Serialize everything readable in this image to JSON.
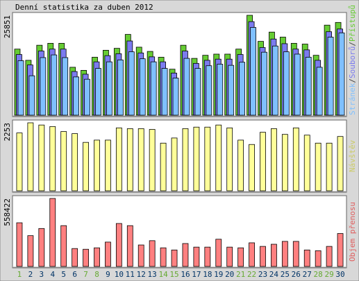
{
  "chart_data": [
    {
      "type": "bar-group",
      "title": "Denní statistika za duben 2012",
      "ylim": [
        0,
        25851
      ],
      "yticks": [
        25851
      ],
      "legend_separator": "/",
      "series": [
        {
          "name": "Přístupů",
          "color": "#66cc33",
          "values": [
            17100,
            14200,
            18100,
            18600,
            18600,
            12400,
            11600,
            15000,
            16800,
            17300,
            20900,
            17600,
            16500,
            15000,
            11900,
            18100,
            14700,
            15500,
            15800,
            15800,
            17100,
            25851,
            19100,
            21500,
            20200,
            18600,
            18400,
            15500,
            23300,
            24000
          ]
        },
        {
          "name": "Souborů",
          "color": "#7b7bef",
          "values": [
            15700,
            13000,
            16600,
            17100,
            17100,
            11300,
            10600,
            13800,
            15400,
            15900,
            19200,
            16100,
            15100,
            13800,
            10900,
            16600,
            13400,
            14200,
            14500,
            14500,
            15700,
            24200,
            17500,
            19700,
            18500,
            17100,
            16900,
            14200,
            21600,
            22300
          ]
        },
        {
          "name": "Stránek",
          "color": "#7fc0ff",
          "values": [
            14100,
            10200,
            14900,
            15600,
            14900,
            9900,
            9300,
            12100,
            13800,
            14300,
            16400,
            14600,
            13800,
            12100,
            9600,
            14700,
            12100,
            12800,
            13200,
            12900,
            13700,
            22700,
            16300,
            17900,
            16400,
            15800,
            15000,
            12400,
            20200,
            21300
          ]
        }
      ]
    },
    {
      "type": "bar",
      "name": "Návštěv",
      "color": "#ffff99",
      "label_color": "#cccc66",
      "ylim": [
        0,
        2253
      ],
      "yticks": [
        2253
      ],
      "values": [
        1917,
        2253,
        2180,
        2130,
        1965,
        1895,
        1605,
        1680,
        1680,
        2085,
        2060,
        2060,
        2035,
        1580,
        1750,
        2060,
        2110,
        2110,
        2180,
        2085,
        1680,
        1535,
        1940,
        2060,
        1870,
        2085,
        1845,
        1580,
        1580,
        1800
      ]
    },
    {
      "type": "bar",
      "name": "Objem přenosu",
      "color": "#ff8080",
      "label_color": "#e06060",
      "ylim": [
        0,
        558422
      ],
      "yticks": [
        558422
      ],
      "categories": [
        1,
        2,
        3,
        4,
        5,
        6,
        7,
        8,
        9,
        10,
        11,
        12,
        13,
        14,
        15,
        16,
        17,
        18,
        19,
        20,
        21,
        22,
        23,
        24,
        25,
        26,
        27,
        28,
        29,
        30
      ],
      "highlighted": [
        1,
        7,
        8,
        14,
        15,
        21,
        22,
        28,
        29
      ],
      "highlight_color": "#66aa33",
      "category_color": "#003366",
      "values": [
        358600,
        252800,
        311600,
        558422,
        335100,
        147000,
        141100,
        152800,
        199900,
        352700,
        335100,
        176300,
        211600,
        152800,
        135200,
        188100,
        158700,
        158700,
        223400,
        158700,
        152800,
        194000,
        164600,
        182200,
        205700,
        205700,
        135200,
        129300,
        164600,
        270400
      ]
    }
  ]
}
